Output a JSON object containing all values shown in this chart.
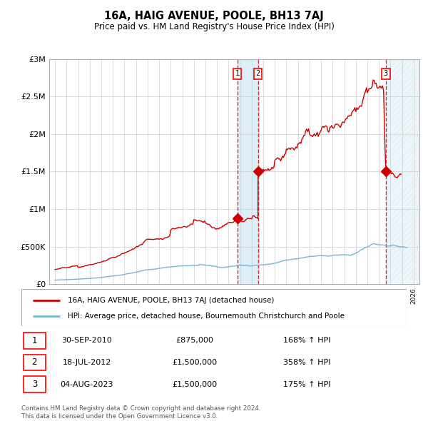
{
  "title": "16A, HAIG AVENUE, POOLE, BH13 7AJ",
  "subtitle": "Price paid vs. HM Land Registry's House Price Index (HPI)",
  "hpi_label": "HPI: Average price, detached house, Bournemouth Christchurch and Poole",
  "prop_label": "16A, HAIG AVENUE, POOLE, BH13 7AJ (detached house)",
  "footer1": "Contains HM Land Registry data © Crown copyright and database right 2024.",
  "footer2": "This data is licensed under the Open Government Licence v3.0.",
  "transactions": [
    {
      "num": 1,
      "date": "30-SEP-2010",
      "price": "£875,000",
      "pct": "168% ↑ HPI",
      "year": 2010.75,
      "price_val": 875000
    },
    {
      "num": 2,
      "date": "18-JUL-2012",
      "price": "£1,500,000",
      "pct": "358% ↑ HPI",
      "year": 2012.54,
      "price_val": 1500000
    },
    {
      "num": 3,
      "date": "04-AUG-2023",
      "price": "£1,500,000",
      "pct": "175% ↑ HPI",
      "year": 2023.59,
      "price_val": 1500000
    }
  ],
  "hpi_color": "#7ab3d4",
  "prop_color": "#cc0000",
  "shade_color": "#ddeef7",
  "hatch_color": "#ddeef7",
  "ylim": [
    0,
    3000000
  ],
  "xlim": [
    1994.5,
    2026.5
  ],
  "yticks": [
    0,
    500000,
    1000000,
    1500000,
    2000000,
    2500000,
    3000000
  ],
  "ytick_labels": [
    "£0",
    "£500K",
    "£1M",
    "£1.5M",
    "£2M",
    "£2.5M",
    "£3M"
  ],
  "xticks": [
    1995,
    1996,
    1997,
    1998,
    1999,
    2000,
    2001,
    2002,
    2003,
    2004,
    2005,
    2006,
    2007,
    2008,
    2009,
    2010,
    2011,
    2012,
    2013,
    2014,
    2015,
    2016,
    2017,
    2018,
    2019,
    2020,
    2021,
    2022,
    2023,
    2024,
    2025,
    2026
  ]
}
